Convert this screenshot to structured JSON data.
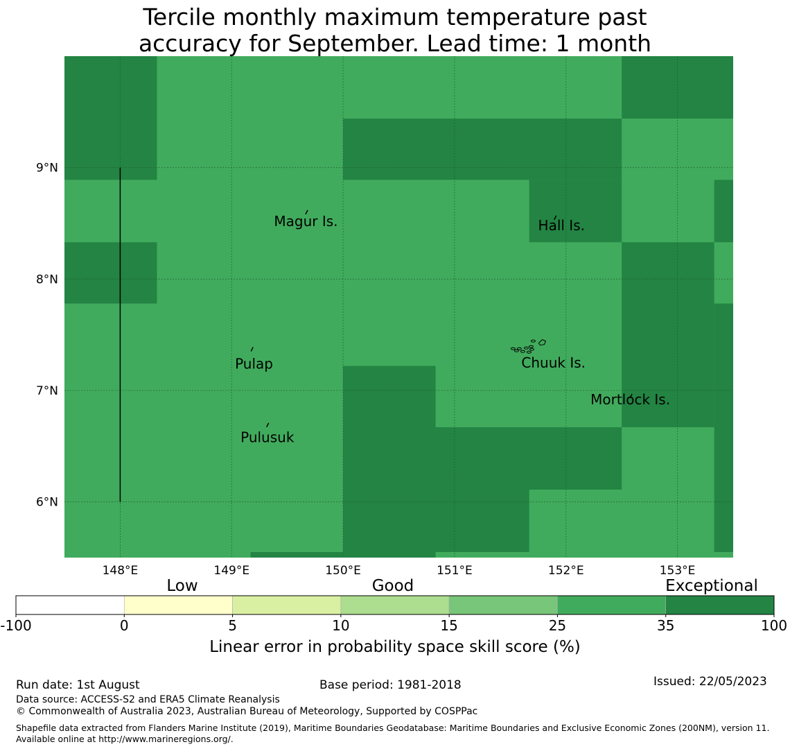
{
  "title_line1": "Tercile monthly maximum temperature past",
  "title_line2": "accuracy for September. Lead time: 1 month",
  "chart_data": {
    "type": "heatmap",
    "xlim": [
      147.5,
      153.5
    ],
    "ylim": [
      5.5,
      10.0
    ],
    "x_ticks": [
      148,
      149,
      150,
      151,
      152,
      153
    ],
    "x_tick_labels": [
      "148°E",
      "149°E",
      "150°E",
      "151°E",
      "152°E",
      "153°E"
    ],
    "y_ticks": [
      6,
      7,
      8,
      9
    ],
    "y_tick_labels": [
      "6°N",
      "7°N",
      "8°N",
      "9°N"
    ],
    "colors": {
      "band_25_35": "#41ab5d",
      "band_35_100": "#238443",
      "grid": "#1b5e30",
      "land": "#000000"
    },
    "regions": [
      {
        "category": "35-100",
        "lon": [
          147.5,
          148.33
        ],
        "lat": [
          8.89,
          10.0
        ]
      },
      {
        "category": "35-100",
        "lon": [
          147.5,
          148.33
        ],
        "lat": [
          7.78,
          8.33
        ]
      },
      {
        "category": "35-100",
        "lon": [
          150.0,
          152.5
        ],
        "lat": [
          8.89,
          9.44
        ]
      },
      {
        "category": "35-100",
        "lon": [
          151.67,
          152.5
        ],
        "lat": [
          8.33,
          8.89
        ]
      },
      {
        "category": "35-100",
        "lon": [
          152.5,
          153.5
        ],
        "lat": [
          9.44,
          10.0
        ]
      },
      {
        "category": "35-100",
        "lon": [
          153.33,
          153.5
        ],
        "lat": [
          8.33,
          8.89
        ]
      },
      {
        "category": "35-100",
        "lon": [
          152.5,
          153.33
        ],
        "lat": [
          6.67,
          8.33
        ]
      },
      {
        "category": "35-100",
        "lon": [
          153.33,
          153.5
        ],
        "lat": [
          5.55,
          7.78
        ]
      },
      {
        "category": "35-100",
        "lon": [
          150.0,
          150.83
        ],
        "lat": [
          5.5,
          7.22
        ]
      },
      {
        "category": "35-100",
        "lon": [
          150.83,
          152.5
        ],
        "lat": [
          6.11,
          6.67
        ]
      },
      {
        "category": "35-100",
        "lon": [
          150.83,
          151.67
        ],
        "lat": [
          5.55,
          6.11
        ]
      },
      {
        "category": "35-100",
        "lon": [
          149.17,
          150.0
        ],
        "lat": [
          5.5,
          5.55
        ]
      }
    ],
    "boundary_line": {
      "lon": 148.0,
      "lat": [
        6.0,
        9.0
      ]
    },
    "islands": [
      {
        "name": "Magur Is.",
        "lon": 149.67,
        "lat": 8.6,
        "label_lon": 149.38,
        "label_lat": 8.52
      },
      {
        "name": "Hall Is.",
        "lon": 151.9,
        "lat": 8.55,
        "label_lon": 151.75,
        "label_lat": 8.48
      },
      {
        "name": "Pulap",
        "lon": 149.18,
        "lat": 7.37,
        "label_lon": 149.03,
        "label_lat": 7.24
      },
      {
        "name": "Chuuk Is.",
        "lon": 151.83,
        "lat": 7.4,
        "label_lon": 151.6,
        "label_lat": 7.25
      },
      {
        "name": "Mortlock Is.",
        "lon": 152.58,
        "lat": 6.95,
        "label_lon": 152.22,
        "label_lat": 6.92
      },
      {
        "name": "Pulusuk",
        "lon": 149.32,
        "lat": 6.69,
        "label_lon": 149.08,
        "label_lat": 6.58
      }
    ],
    "colorbar": {
      "boundaries": [
        -100,
        0,
        5,
        10,
        15,
        25,
        35,
        100
      ],
      "colors": [
        "#ffffff",
        "#ffffcc",
        "#d9f0a3",
        "#addd8e",
        "#78c679",
        "#41ab5d",
        "#238443"
      ],
      "category_labels": [
        "Low",
        "Good",
        "Exceptional"
      ],
      "label": "Linear error in probability space skill score (%)"
    }
  },
  "footer": {
    "run_date": "Run date: 1st August",
    "base_period": "Base period: 1981-2018",
    "issued": "Issued: 22/05/2023",
    "data_source": "Data source: ACCESS-S2 and ERA5 Climate Reanalysis",
    "copyright": "© Commonwealth of Australia 2023, Australian Bureau of Meteorology, Supported by COSPPac",
    "shapefile": "Shapefile data extracted from Flanders Marine Institute (2019), Maritime Boundaries Geodatabase: Maritime Boundaries and Exclusive Economic Zones (200NM), version 11. Available online at http://www.marineregions.org/."
  }
}
